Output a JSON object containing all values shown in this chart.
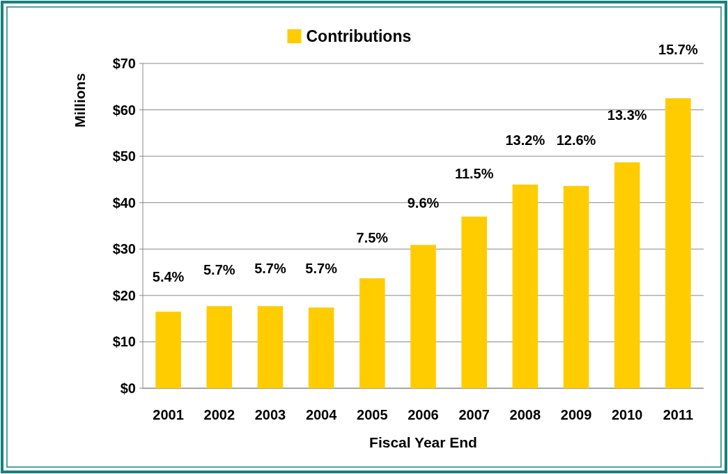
{
  "chart_data": {
    "type": "bar",
    "xlabel": "Fiscal Year End",
    "ylabel": "Millions",
    "categories": [
      "2001",
      "2002",
      "2003",
      "2004",
      "2005",
      "2006",
      "2007",
      "2008",
      "2009",
      "2010",
      "2011"
    ],
    "series": [
      {
        "name": "Contributions",
        "color": "#ffcc00",
        "values": [
          16.5,
          17.7,
          17.7,
          17.4,
          23.7,
          30.9,
          37.0,
          43.9,
          43.6,
          48.7,
          62.5
        ]
      }
    ],
    "annotations": [
      "5.4%",
      "5.7%",
      "5.7%",
      "5.7%",
      "7.5%",
      "9.6%",
      "11.5%",
      "13.2%",
      "12.6%",
      "13.3%",
      "15.7%"
    ],
    "ylim": [
      0,
      70
    ],
    "yticks": [
      {
        "value": 0,
        "label": "$0"
      },
      {
        "value": 10,
        "label": "$10"
      },
      {
        "value": 20,
        "label": "$20"
      },
      {
        "value": 30,
        "label": "$30"
      },
      {
        "value": 40,
        "label": "$40"
      },
      {
        "value": 50,
        "label": "$50"
      },
      {
        "value": 60,
        "label": "$60"
      },
      {
        "value": 70,
        "label": "$70"
      }
    ],
    "grid": "y",
    "legend": "top"
  }
}
